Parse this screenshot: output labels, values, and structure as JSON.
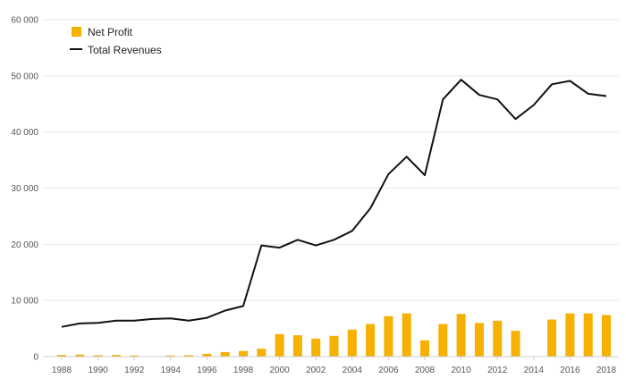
{
  "chart_data": {
    "type": "bar+line",
    "title": "",
    "xlabel": "",
    "ylabel": "",
    "ylim": [
      0,
      60000
    ],
    "yticks": [
      0,
      10000,
      20000,
      30000,
      40000,
      50000,
      60000
    ],
    "ytick_labels": [
      "0",
      "10 000",
      "20 000",
      "30 000",
      "40 000",
      "50 000",
      "60 000"
    ],
    "xtick_labels": [
      "1988",
      "1990",
      "1992",
      "1994",
      "1996",
      "1998",
      "2000",
      "2002",
      "2004",
      "2006",
      "2008",
      "2010",
      "2012",
      "2014",
      "2016",
      "2018"
    ],
    "grid": true,
    "legend_placement": "top-left",
    "x": [
      1988,
      1989,
      1990,
      1991,
      1992,
      1993,
      1994,
      1995,
      1996,
      1997,
      1998,
      1999,
      2000,
      2001,
      2002,
      2003,
      2004,
      2005,
      2006,
      2007,
      2008,
      2009,
      2010,
      2011,
      2012,
      2013,
      2014,
      2015,
      2016,
      2017,
      2018
    ],
    "series": [
      {
        "name": "Net Profit",
        "type": "bar",
        "color": "#f5b000",
        "values": [
          300,
          350,
          250,
          300,
          200,
          null,
          200,
          250,
          500,
          800,
          1000,
          1400,
          4000,
          3800,
          3200,
          3700,
          4800,
          5800,
          7200,
          7700,
          2900,
          5800,
          7600,
          6000,
          6400,
          4600,
          null,
          6600,
          7700,
          7700,
          7400
        ]
      },
      {
        "name": "Total Revenues",
        "type": "line",
        "color": "#111111",
        "values": [
          5300,
          5900,
          6000,
          6400,
          6400,
          6700,
          6800,
          6400,
          6900,
          8200,
          9000,
          19800,
          19400,
          20800,
          19800,
          20800,
          22400,
          26400,
          32500,
          35600,
          32300,
          45800,
          49300,
          46600,
          45800,
          42300,
          44800,
          48500,
          49100,
          46800,
          46400
        ]
      }
    ]
  }
}
